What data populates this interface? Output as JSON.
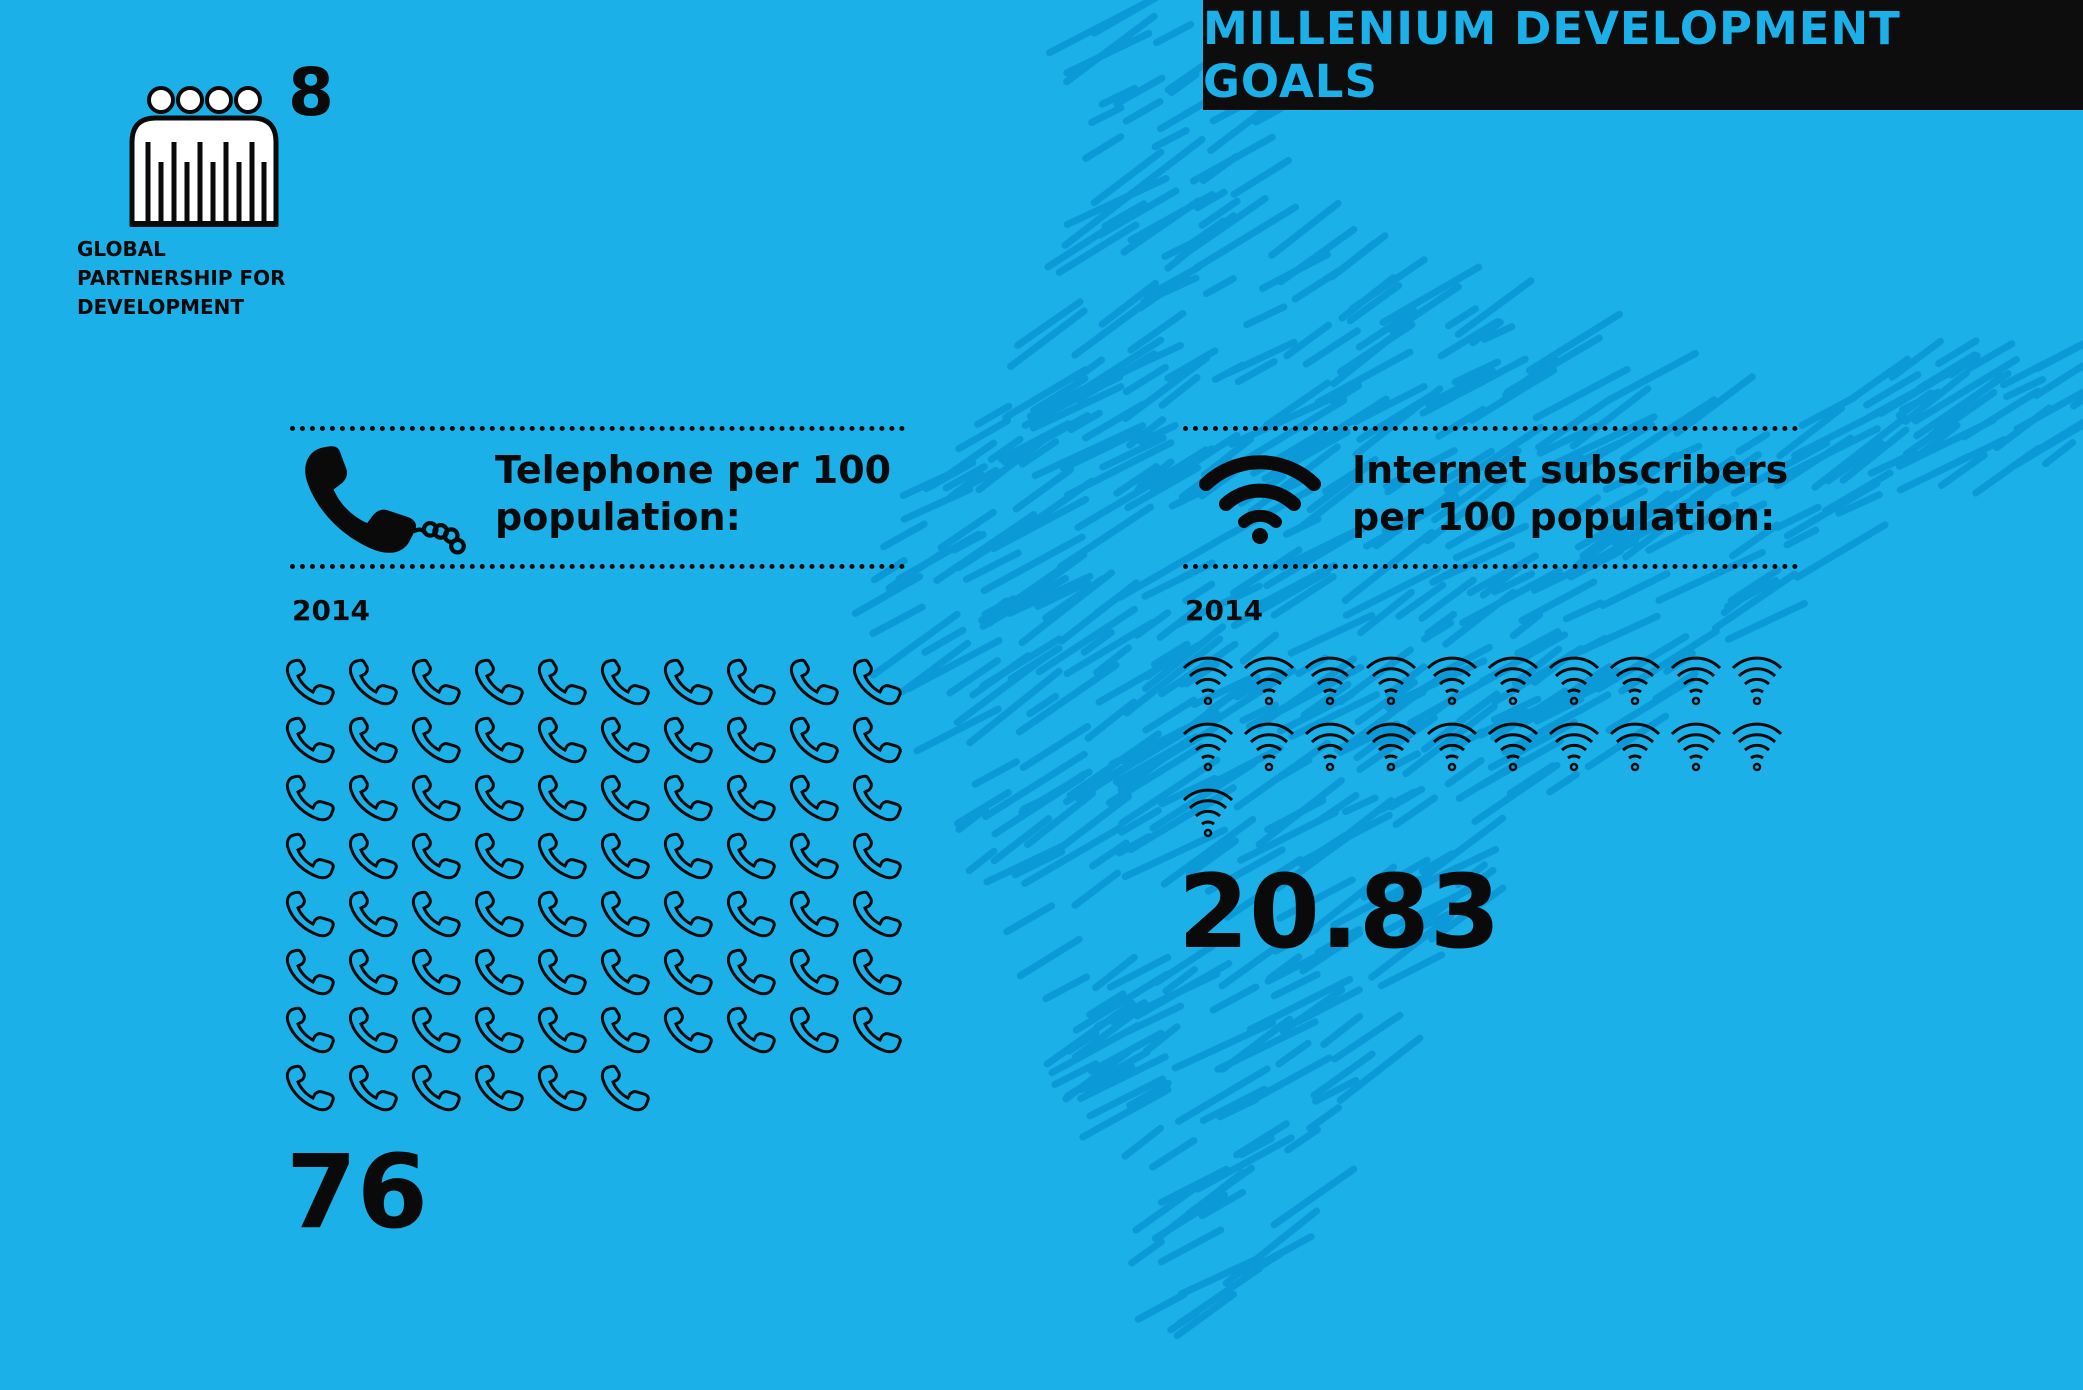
{
  "header": {
    "title": "MILLENIUM DEVELOPMENT GOALS"
  },
  "goal": {
    "number": "8",
    "caption_lines": [
      "GLOBAL",
      "PARTNERSHIP FOR",
      "DEVELOPMENT"
    ],
    "icon": "people-group-icon"
  },
  "telephone": {
    "icon": "telephone-icon",
    "label_lines": [
      "Telephone per 100",
      "population:"
    ],
    "year": "2014",
    "value_text": "76",
    "pictogram_icon": "telephone-outline-icon",
    "pictogram_count": 76,
    "pictogram_per_row": 10
  },
  "internet": {
    "icon": "wifi-icon",
    "label_lines": [
      "Internet subscribers",
      "per 100 population:"
    ],
    "year": "2014",
    "value_text": "20.83",
    "pictogram_icon": "wifi-outline-icon",
    "pictogram_count": 21,
    "pictogram_per_row": 10
  },
  "chart_data": {
    "type": "bar",
    "categories": [
      "Telephone per 100 population:",
      "Internet subscribers per 100 population:"
    ],
    "series": [
      {
        "values": [
          76,
          20.83
        ]
      }
    ],
    "xlabel": "2014",
    "ylabel": ""
  },
  "colors": {
    "background": "#1bb0e8",
    "map_scribble": "#0a97d6",
    "banner": "#0d0d0d",
    "banner_text": "#1bb0e8",
    "ink": "#0a0a0a"
  }
}
